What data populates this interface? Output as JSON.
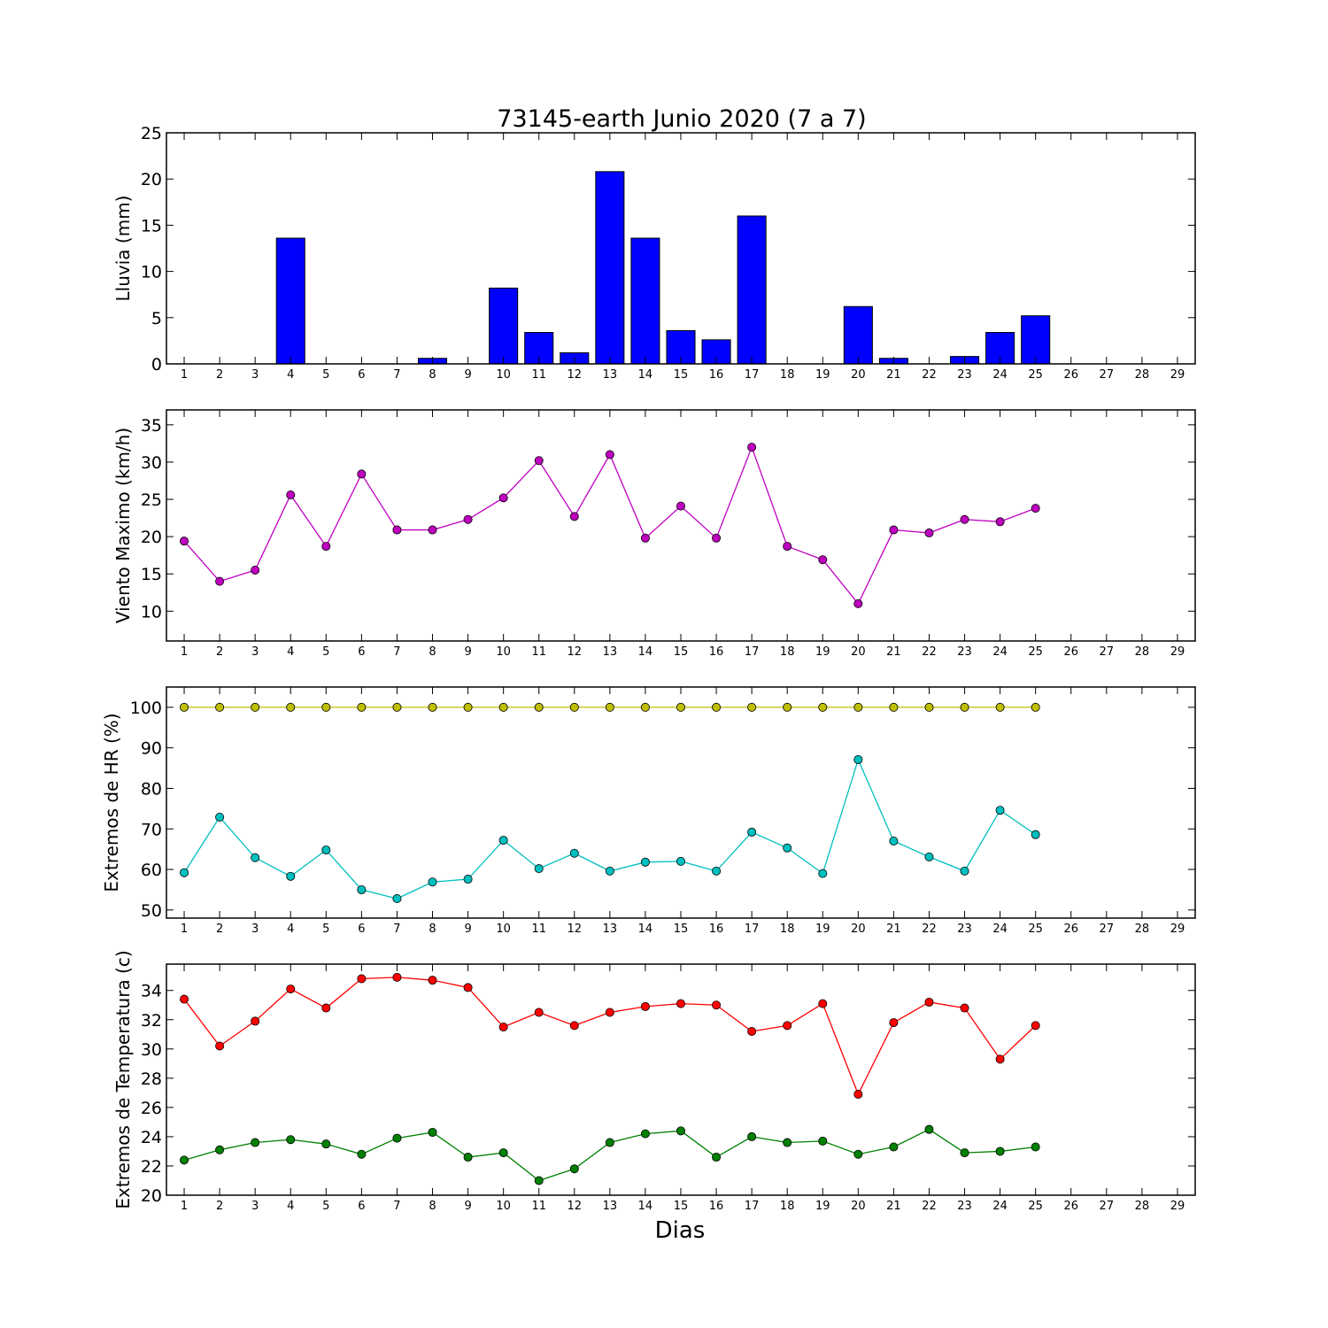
{
  "figure": {
    "title": "73145-earth Junio 2020  (7 a 7)",
    "xlabel": "Dias"
  },
  "chart_data": [
    {
      "type": "bar",
      "ylabel": "Lluvia (mm)",
      "ylim": [
        0,
        25
      ],
      "yticks": [
        0,
        5,
        10,
        15,
        20,
        25
      ],
      "xlim": [
        0.5,
        29.5
      ],
      "xticks": [
        1,
        2,
        3,
        4,
        5,
        6,
        7,
        8,
        9,
        10,
        11,
        12,
        13,
        14,
        15,
        16,
        17,
        18,
        19,
        20,
        21,
        22,
        23,
        24,
        25,
        26,
        27,
        28,
        29
      ],
      "bar_color": "#0000ff",
      "x": [
        1,
        2,
        3,
        4,
        5,
        6,
        7,
        8,
        9,
        10,
        11,
        12,
        13,
        14,
        15,
        16,
        17,
        18,
        19,
        20,
        21,
        22,
        23,
        24,
        25
      ],
      "values": [
        0,
        0,
        0,
        13.6,
        0,
        0,
        0,
        0.6,
        0,
        8.2,
        3.4,
        1.2,
        20.8,
        13.6,
        3.6,
        2.6,
        16,
        0,
        0,
        6.2,
        0.6,
        0,
        0.8,
        3.4,
        5.2
      ]
    },
    {
      "type": "line",
      "ylabel": "Viento Maximo (km/h)",
      "ylim": [
        6,
        37
      ],
      "yticks": [
        10,
        15,
        20,
        25,
        30,
        35
      ],
      "xlim": [
        0.5,
        29.5
      ],
      "xticks": [
        1,
        2,
        3,
        4,
        5,
        6,
        7,
        8,
        9,
        10,
        11,
        12,
        13,
        14,
        15,
        16,
        17,
        18,
        19,
        20,
        21,
        22,
        23,
        24,
        25,
        26,
        27,
        28,
        29
      ],
      "x": [
        1,
        2,
        3,
        4,
        5,
        6,
        7,
        8,
        9,
        10,
        11,
        12,
        13,
        14,
        15,
        16,
        17,
        18,
        19,
        20,
        21,
        22,
        23,
        24,
        25
      ],
      "series": [
        {
          "color": "#bf00bf",
          "values": [
            19.4,
            14,
            15.5,
            25.6,
            18.7,
            28.4,
            20.9,
            20.9,
            22.3,
            25.2,
            30.2,
            22.7,
            31,
            19.8,
            24.1,
            19.8,
            32,
            18.7,
            16.9,
            11,
            20.9,
            20.5,
            22.3,
            22,
            23.8
          ]
        }
      ]
    },
    {
      "type": "line",
      "ylabel": "Extremos de HR (%)",
      "ylim": [
        48,
        105
      ],
      "yticks": [
        50,
        60,
        70,
        80,
        90,
        100
      ],
      "xlim": [
        0.5,
        29.5
      ],
      "xticks": [
        1,
        2,
        3,
        4,
        5,
        6,
        7,
        8,
        9,
        10,
        11,
        12,
        13,
        14,
        15,
        16,
        17,
        18,
        19,
        20,
        21,
        22,
        23,
        24,
        25,
        26,
        27,
        28,
        29
      ],
      "x": [
        1,
        2,
        3,
        4,
        5,
        6,
        7,
        8,
        9,
        10,
        11,
        12,
        13,
        14,
        15,
        16,
        17,
        18,
        19,
        20,
        21,
        22,
        23,
        24,
        25
      ],
      "series": [
        {
          "color": "#bfbf00",
          "values": [
            100,
            100,
            100,
            100,
            100,
            100,
            100,
            100,
            100,
            100,
            100,
            100,
            100,
            100,
            100,
            100,
            100,
            100,
            100,
            100,
            100,
            100,
            100,
            100,
            100
          ]
        },
        {
          "color": "#00bfbf",
          "values": [
            59.2,
            72.9,
            62.9,
            58.3,
            64.8,
            55,
            52.8,
            56.9,
            57.6,
            67.2,
            60.2,
            64,
            59.6,
            61.8,
            62,
            59.6,
            69.2,
            65.3,
            59,
            87.1,
            67,
            63.1,
            59.6,
            74.6,
            68.6
          ]
        }
      ]
    },
    {
      "type": "line",
      "ylabel": "Extremos de Temperatura (c)",
      "ylim": [
        20,
        35.8
      ],
      "yticks": [
        20,
        22,
        24,
        26,
        28,
        30,
        32,
        34
      ],
      "xlim": [
        0.5,
        29.5
      ],
      "xticks": [
        1,
        2,
        3,
        4,
        5,
        6,
        7,
        8,
        9,
        10,
        11,
        12,
        13,
        14,
        15,
        16,
        17,
        18,
        19,
        20,
        21,
        22,
        23,
        24,
        25,
        26,
        27,
        28,
        29
      ],
      "x": [
        1,
        2,
        3,
        4,
        5,
        6,
        7,
        8,
        9,
        10,
        11,
        12,
        13,
        14,
        15,
        16,
        17,
        18,
        19,
        20,
        21,
        22,
        23,
        24,
        25
      ],
      "series": [
        {
          "color": "#ff0000",
          "values": [
            33.4,
            30.2,
            31.9,
            34.1,
            32.8,
            34.8,
            34.9,
            34.7,
            34.2,
            31.5,
            32.5,
            31.6,
            32.5,
            32.9,
            33.1,
            33,
            31.2,
            31.6,
            33.1,
            26.9,
            31.8,
            33.2,
            32.8,
            29.3,
            31.6
          ]
        },
        {
          "color": "#008000",
          "values": [
            22.4,
            23.1,
            23.6,
            23.8,
            23.5,
            22.8,
            23.9,
            24.3,
            22.6,
            22.9,
            21,
            21.8,
            23.6,
            24.2,
            24.4,
            22.6,
            24,
            23.6,
            23.7,
            22.8,
            23.3,
            24.5,
            22.9,
            23,
            23.3
          ]
        }
      ]
    }
  ]
}
